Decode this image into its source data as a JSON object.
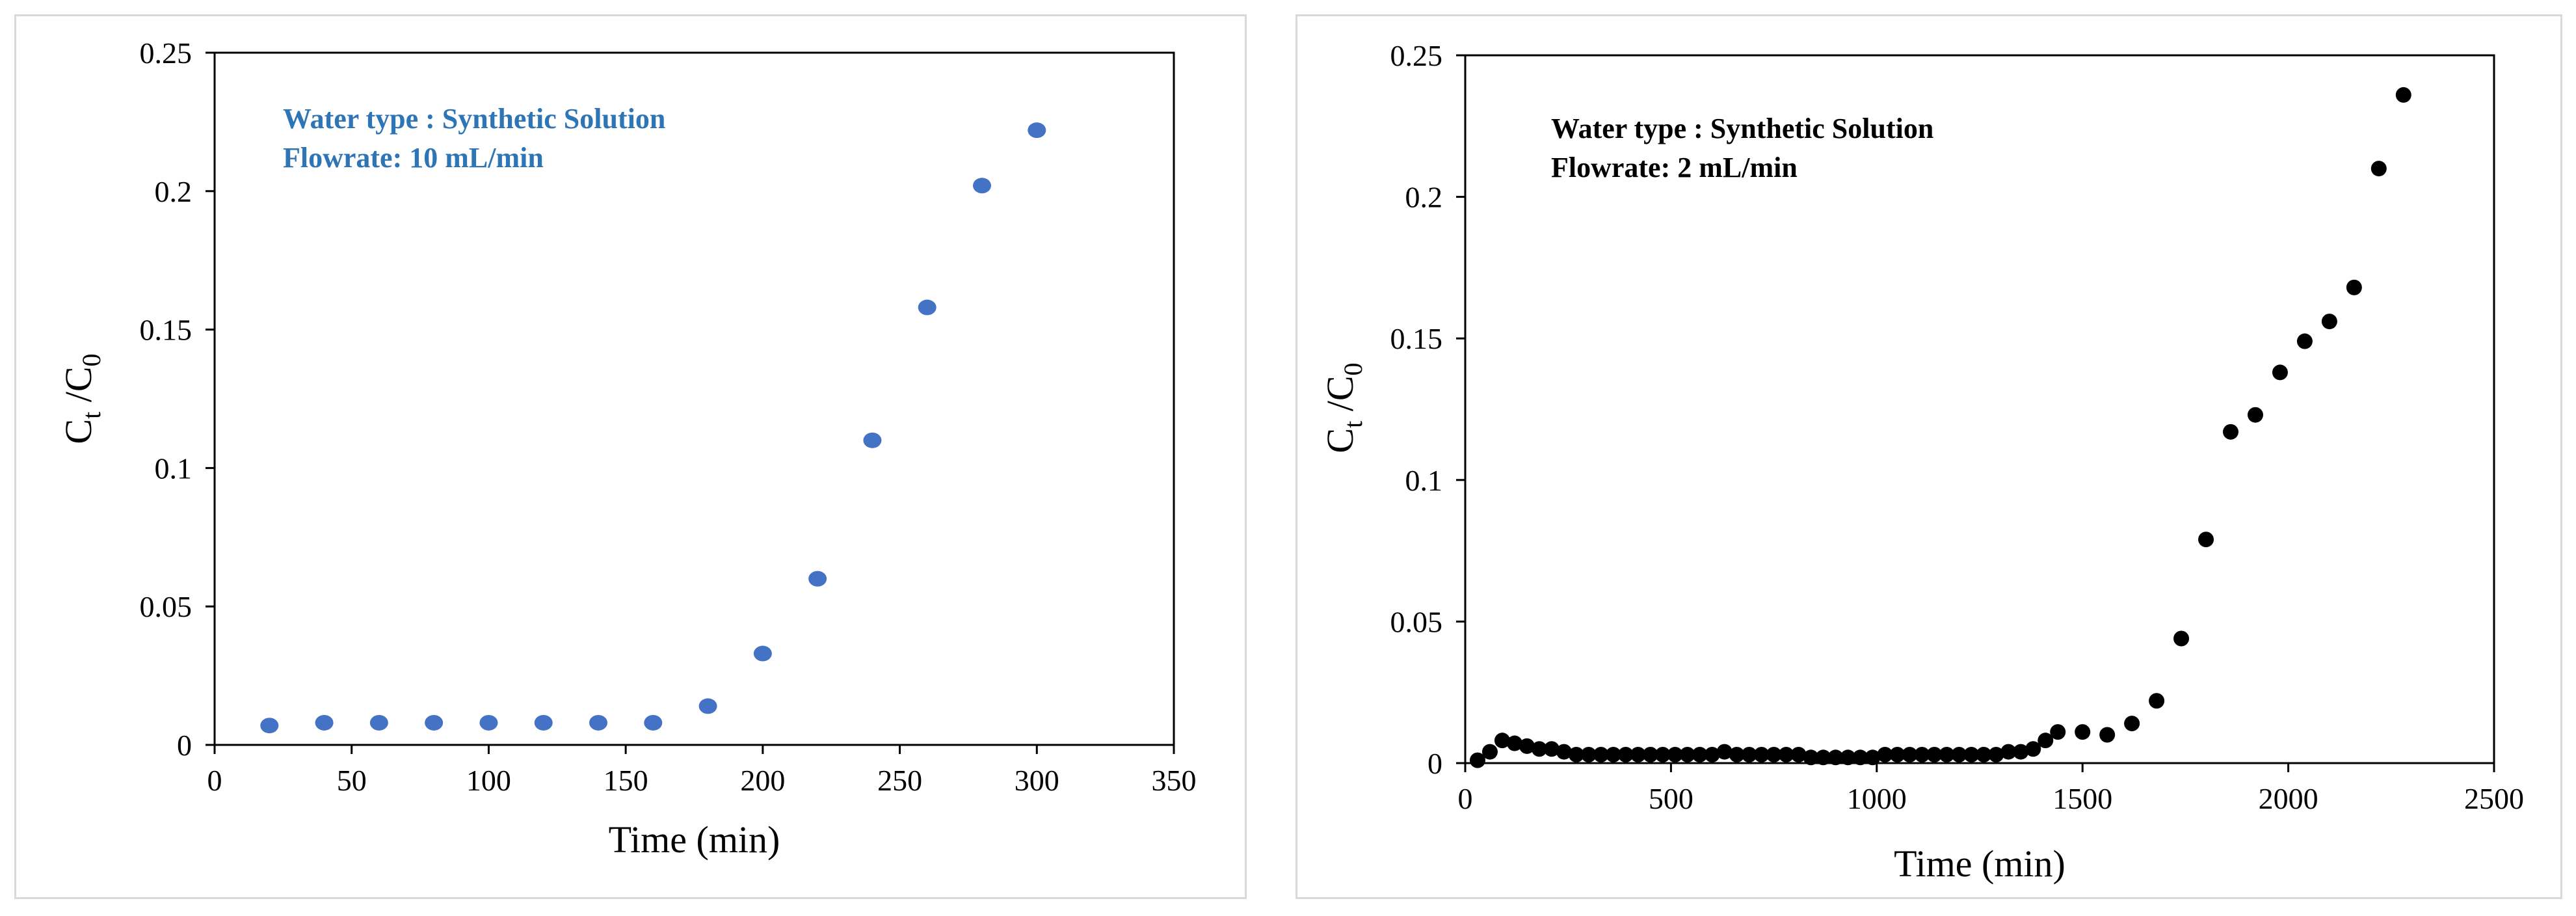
{
  "chart_data": [
    {
      "type": "scatter",
      "title": "",
      "xlabel": "Time (min)",
      "ylabel": {
        "main": "C",
        "sub1": "t",
        "mid": " /C",
        "sub2": "0"
      },
      "xlim": [
        0,
        350
      ],
      "ylim": [
        0,
        0.25
      ],
      "xticks": [
        0,
        50,
        100,
        150,
        200,
        250,
        300,
        350
      ],
      "yticks": [
        0,
        0.05,
        0.1,
        0.15,
        0.2,
        0.25
      ],
      "xtick_labels": [
        "0",
        "50",
        "100",
        "150",
        "200",
        "250",
        "300",
        "350"
      ],
      "ytick_labels": [
        "0",
        "0.05",
        "0.1",
        "0.15",
        "0.2",
        "0.25"
      ],
      "grid": false,
      "marker_color": "#4472C4",
      "annotation_color": "#2E75B6",
      "annotations": [
        "Water type : Synthetic Solution",
        "Flowrate: 10 mL/min"
      ],
      "x": [
        20,
        40,
        60,
        80,
        100,
        120,
        140,
        160,
        180,
        200,
        220,
        240,
        260,
        280,
        300
      ],
      "y": [
        0.007,
        0.008,
        0.008,
        0.008,
        0.008,
        0.008,
        0.008,
        0.008,
        0.014,
        0.033,
        0.06,
        0.11,
        0.158,
        0.202,
        0.222
      ]
    },
    {
      "type": "scatter",
      "title": "",
      "xlabel": "Time (min)",
      "ylabel": {
        "main": "C",
        "sub1": "t",
        "mid": " /C",
        "sub2": "0"
      },
      "xlim": [
        0,
        2500
      ],
      "ylim": [
        0,
        0.25
      ],
      "xticks": [
        0,
        500,
        1000,
        1500,
        2000,
        2500
      ],
      "yticks": [
        0,
        0.05,
        0.1,
        0.15,
        0.2,
        0.25
      ],
      "xtick_labels": [
        "0",
        "500",
        "1000",
        "1500",
        "2000",
        "2500"
      ],
      "ytick_labels": [
        "0",
        "0.05",
        "0.1",
        "0.15",
        "0.2",
        "0.25"
      ],
      "grid": false,
      "marker_color": "#000000",
      "annotation_color": "#000000",
      "annotations": [
        "Water type : Synthetic Solution",
        "Flowrate: 2 mL/min"
      ],
      "x": [
        30,
        60,
        90,
        120,
        150,
        180,
        210,
        240,
        270,
        300,
        330,
        360,
        390,
        420,
        450,
        480,
        510,
        540,
        570,
        600,
        630,
        660,
        690,
        720,
        750,
        780,
        810,
        840,
        870,
        900,
        930,
        960,
        990,
        1020,
        1050,
        1080,
        1110,
        1140,
        1170,
        1200,
        1230,
        1260,
        1290,
        1320,
        1350,
        1380,
        1410,
        1440,
        1500,
        1560,
        1620,
        1680,
        1740,
        1800,
        1860,
        1920,
        1980,
        2040,
        2100,
        2160,
        2220,
        2280
      ],
      "y": [
        0.001,
        0.004,
        0.008,
        0.007,
        0.006,
        0.005,
        0.005,
        0.004,
        0.003,
        0.003,
        0.003,
        0.003,
        0.003,
        0.003,
        0.003,
        0.003,
        0.003,
        0.003,
        0.003,
        0.003,
        0.004,
        0.003,
        0.003,
        0.003,
        0.003,
        0.003,
        0.003,
        0.002,
        0.002,
        0.002,
        0.002,
        0.002,
        0.002,
        0.003,
        0.003,
        0.003,
        0.003,
        0.003,
        0.003,
        0.003,
        0.003,
        0.003,
        0.003,
        0.004,
        0.004,
        0.005,
        0.008,
        0.011,
        0.011,
        0.01,
        0.014,
        0.022,
        0.044,
        0.079,
        0.117,
        0.123,
        0.138,
        0.149,
        0.156,
        0.168,
        0.21,
        0.236
      ]
    }
  ]
}
